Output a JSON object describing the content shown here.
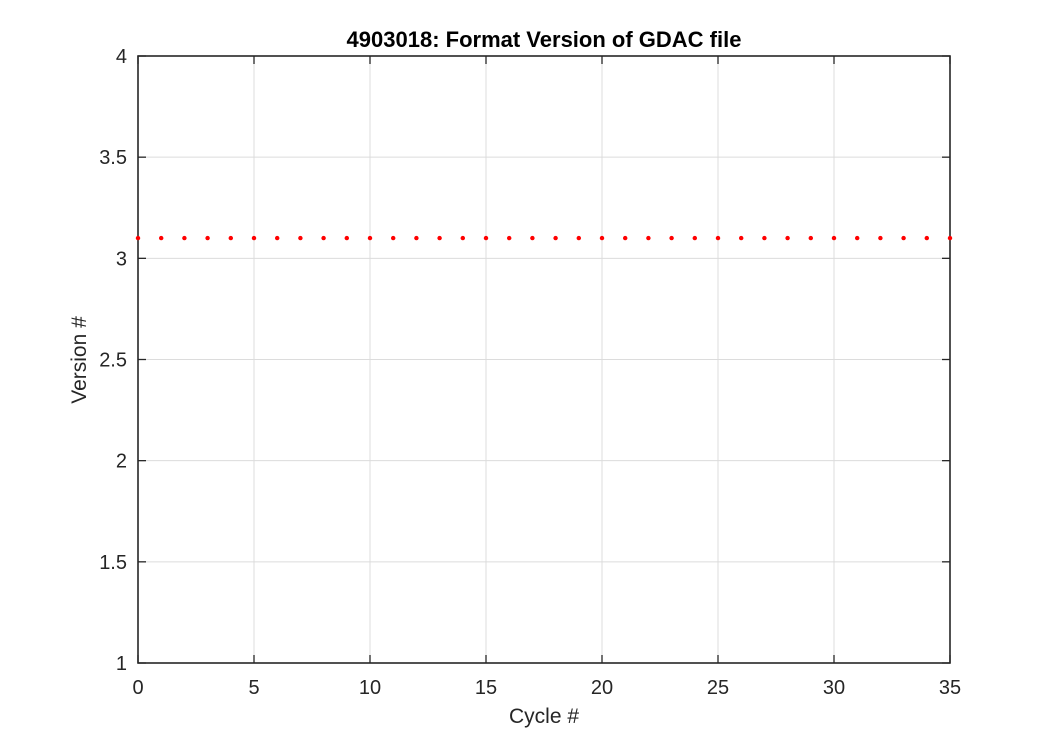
{
  "figure": {
    "background": "#ffffff"
  },
  "chart_data": {
    "type": "scatter",
    "title": "4903018: Format Version of GDAC file",
    "xlabel": "Cycle #",
    "ylabel": "Version #",
    "x": [
      0,
      1,
      2,
      3,
      4,
      5,
      6,
      7,
      8,
      9,
      10,
      11,
      12,
      13,
      14,
      15,
      16,
      17,
      18,
      19,
      20,
      21,
      22,
      23,
      24,
      25,
      26,
      27,
      28,
      29,
      30,
      31,
      32,
      33,
      34,
      35
    ],
    "y": [
      3.1,
      3.1,
      3.1,
      3.1,
      3.1,
      3.1,
      3.1,
      3.1,
      3.1,
      3.1,
      3.1,
      3.1,
      3.1,
      3.1,
      3.1,
      3.1,
      3.1,
      3.1,
      3.1,
      3.1,
      3.1,
      3.1,
      3.1,
      3.1,
      3.1,
      3.1,
      3.1,
      3.1,
      3.1,
      3.1,
      3.1,
      3.1,
      3.1,
      3.1,
      3.1,
      3.1
    ],
    "xlim": [
      0,
      35
    ],
    "ylim": [
      1,
      4
    ],
    "xticks": [
      0,
      5,
      10,
      15,
      20,
      25,
      30,
      35
    ],
    "xtick_labels": [
      "0",
      "5",
      "10",
      "15",
      "20",
      "25",
      "30",
      "35"
    ],
    "yticks": [
      1,
      1.5,
      2,
      2.5,
      3,
      3.5,
      4
    ],
    "ytick_labels": [
      "1",
      "1.5",
      "2",
      "2.5",
      "3",
      "3.5",
      "4"
    ],
    "grid": true,
    "box": true,
    "tick_direction": "in",
    "legend": null,
    "marker": {
      "shape": "dot",
      "color": "#ff0000",
      "size": 4
    },
    "colors": {
      "axis": "#262626",
      "grid": "#dcdcdc",
      "title": "#000000",
      "labels": "#262626",
      "background": "#ffffff"
    }
  }
}
